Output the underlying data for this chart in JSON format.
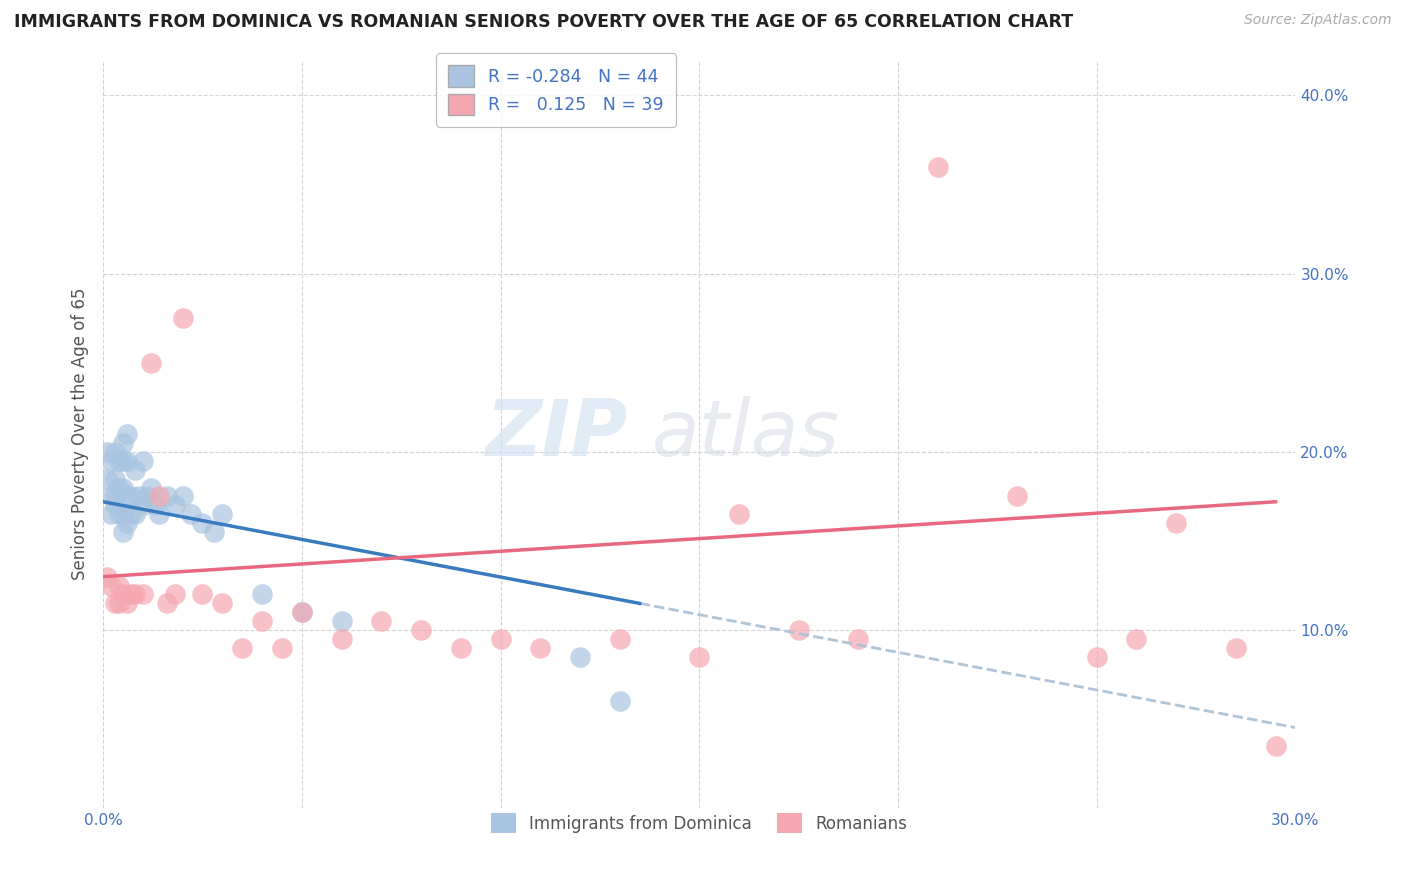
{
  "title": "IMMIGRANTS FROM DOMINICA VS ROMANIAN SENIORS POVERTY OVER THE AGE OF 65 CORRELATION CHART",
  "source": "Source: ZipAtlas.com",
  "ylabel": "Seniors Poverty Over the Age of 65",
  "xlim": [
    0.0,
    0.3
  ],
  "ylim": [
    0.0,
    0.42
  ],
  "x_ticks": [
    0.0,
    0.05,
    0.1,
    0.15,
    0.2,
    0.25,
    0.3
  ],
  "y_ticks": [
    0.0,
    0.1,
    0.2,
    0.3,
    0.4
  ],
  "R_blue": -0.284,
  "N_blue": 44,
  "R_pink": 0.125,
  "N_pink": 39,
  "color_blue": "#a8c4e0",
  "color_pink": "#f4a7b0",
  "line_blue": "#3a7abf",
  "line_pink": "#e86880",
  "line_dashed": "#b0c4d8",
  "blue_scatter_x": [
    0.001,
    0.001,
    0.002,
    0.002,
    0.002,
    0.003,
    0.003,
    0.003,
    0.003,
    0.004,
    0.004,
    0.004,
    0.005,
    0.005,
    0.005,
    0.005,
    0.005,
    0.006,
    0.006,
    0.006,
    0.006,
    0.007,
    0.007,
    0.008,
    0.008,
    0.009,
    0.01,
    0.01,
    0.011,
    0.012,
    0.013,
    0.014,
    0.016,
    0.018,
    0.02,
    0.022,
    0.025,
    0.028,
    0.03,
    0.04,
    0.05,
    0.06,
    0.12,
    0.13
  ],
  "blue_scatter_y": [
    0.2,
    0.185,
    0.195,
    0.175,
    0.165,
    0.2,
    0.185,
    0.175,
    0.17,
    0.195,
    0.18,
    0.165,
    0.205,
    0.195,
    0.18,
    0.165,
    0.155,
    0.21,
    0.195,
    0.175,
    0.16,
    0.175,
    0.165,
    0.19,
    0.165,
    0.175,
    0.195,
    0.17,
    0.175,
    0.18,
    0.17,
    0.165,
    0.175,
    0.17,
    0.175,
    0.165,
    0.16,
    0.155,
    0.165,
    0.12,
    0.11,
    0.105,
    0.085,
    0.06
  ],
  "pink_scatter_x": [
    0.001,
    0.002,
    0.003,
    0.004,
    0.004,
    0.005,
    0.006,
    0.007,
    0.008,
    0.01,
    0.012,
    0.014,
    0.016,
    0.018,
    0.02,
    0.025,
    0.03,
    0.035,
    0.04,
    0.045,
    0.05,
    0.06,
    0.07,
    0.08,
    0.09,
    0.1,
    0.11,
    0.13,
    0.15,
    0.16,
    0.175,
    0.19,
    0.21,
    0.23,
    0.25,
    0.26,
    0.27,
    0.285,
    0.295
  ],
  "pink_scatter_y": [
    0.13,
    0.125,
    0.115,
    0.125,
    0.115,
    0.12,
    0.115,
    0.12,
    0.12,
    0.12,
    0.25,
    0.175,
    0.115,
    0.12,
    0.275,
    0.12,
    0.115,
    0.09,
    0.105,
    0.09,
    0.11,
    0.095,
    0.105,
    0.1,
    0.09,
    0.095,
    0.09,
    0.095,
    0.085,
    0.165,
    0.1,
    0.095,
    0.36,
    0.175,
    0.085,
    0.095,
    0.16,
    0.09,
    0.035
  ]
}
